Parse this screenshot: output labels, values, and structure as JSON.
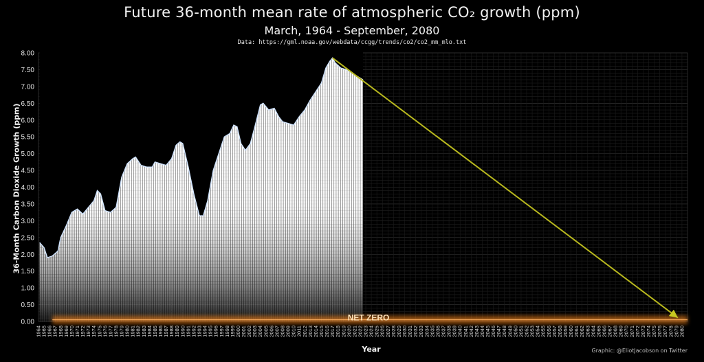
{
  "chart_data": {
    "type": "area",
    "title": "Future 36-month mean rate of atmospheric CO₂ growth (ppm)",
    "subtitle": "March, 1964 - September, 2080",
    "source": "Data: https://gml.noaa.gov/webdata/ccgg/trends/co2/co2_mm_mlo.txt",
    "xlabel": "Year",
    "ylabel": "36-Month Carbon Dioxide Growth (ppm)",
    "xlim": [
      1964,
      2081
    ],
    "ylim": [
      0,
      8
    ],
    "yticks": [
      "0.00",
      "0.50",
      "1.00",
      "1.50",
      "2.00",
      "2.50",
      "3.00",
      "3.50",
      "4.00",
      "4.50",
      "5.00",
      "5.50",
      "6.00",
      "6.50",
      "7.00",
      "7.50",
      "8.00"
    ],
    "xtick_start": 1964,
    "xtick_end": 2080,
    "grid": true,
    "series": [
      {
        "values_points": [
          [
            1964.2,
            2.35
          ],
          [
            1965.0,
            2.2
          ],
          [
            1965.6,
            1.9
          ],
          [
            1966.5,
            1.95
          ],
          [
            1967.5,
            2.1
          ],
          [
            1968.0,
            2.5
          ],
          [
            1969.0,
            2.85
          ],
          [
            1970.0,
            3.25
          ],
          [
            1971.0,
            3.35
          ],
          [
            1972.0,
            3.2
          ],
          [
            1973.0,
            3.4
          ],
          [
            1974.0,
            3.6
          ],
          [
            1974.6,
            3.9
          ],
          [
            1975.2,
            3.8
          ],
          [
            1976.0,
            3.3
          ],
          [
            1977.0,
            3.25
          ],
          [
            1978.0,
            3.4
          ],
          [
            1979.0,
            4.3
          ],
          [
            1980.0,
            4.7
          ],
          [
            1981.0,
            4.85
          ],
          [
            1981.5,
            4.9
          ],
          [
            1982.5,
            4.65
          ],
          [
            1983.5,
            4.6
          ],
          [
            1984.5,
            4.6
          ],
          [
            1985.0,
            4.75
          ],
          [
            1986.0,
            4.7
          ],
          [
            1987.0,
            4.65
          ],
          [
            1988.0,
            4.85
          ],
          [
            1988.8,
            5.25
          ],
          [
            1989.5,
            5.35
          ],
          [
            1990.0,
            5.3
          ],
          [
            1991.0,
            4.6
          ],
          [
            1992.0,
            3.8
          ],
          [
            1993.0,
            3.15
          ],
          [
            1993.7,
            3.15
          ],
          [
            1994.5,
            3.6
          ],
          [
            1995.5,
            4.5
          ],
          [
            1996.5,
            5.0
          ],
          [
            1997.5,
            5.5
          ],
          [
            1998.5,
            5.6
          ],
          [
            1999.2,
            5.85
          ],
          [
            1999.8,
            5.8
          ],
          [
            2000.5,
            5.3
          ],
          [
            2001.3,
            5.1
          ],
          [
            2002.2,
            5.3
          ],
          [
            2003.0,
            5.8
          ],
          [
            2004.0,
            6.45
          ],
          [
            2004.5,
            6.5
          ],
          [
            2005.5,
            6.3
          ],
          [
            2006.5,
            6.35
          ],
          [
            2007.3,
            6.1
          ],
          [
            2008.0,
            5.95
          ],
          [
            2009.0,
            5.9
          ],
          [
            2010.0,
            5.85
          ],
          [
            2011.0,
            6.1
          ],
          [
            2012.0,
            6.3
          ],
          [
            2013.0,
            6.6
          ],
          [
            2014.0,
            6.85
          ],
          [
            2015.0,
            7.1
          ],
          [
            2015.8,
            7.55
          ],
          [
            2016.5,
            7.75
          ],
          [
            2017.0,
            7.85
          ],
          [
            2017.5,
            7.7
          ],
          [
            2018.5,
            7.55
          ],
          [
            2019.5,
            7.5
          ],
          [
            2020.5,
            7.4
          ],
          [
            2021.5,
            7.3
          ],
          [
            2022.5,
            7.2
          ]
        ]
      },
      {
        "values_points": [
          [
            2017.0,
            7.85
          ],
          [
            2080.0,
            0.05
          ]
        ],
        "color": "#b8b81e"
      }
    ],
    "annotations": [
      {
        "text": "NET ZERO",
        "x": 2023.5,
        "y": 0.05,
        "color": "#ff8a1e"
      }
    ]
  },
  "credit": "Graphic: @EliotJacobson on Twitter"
}
